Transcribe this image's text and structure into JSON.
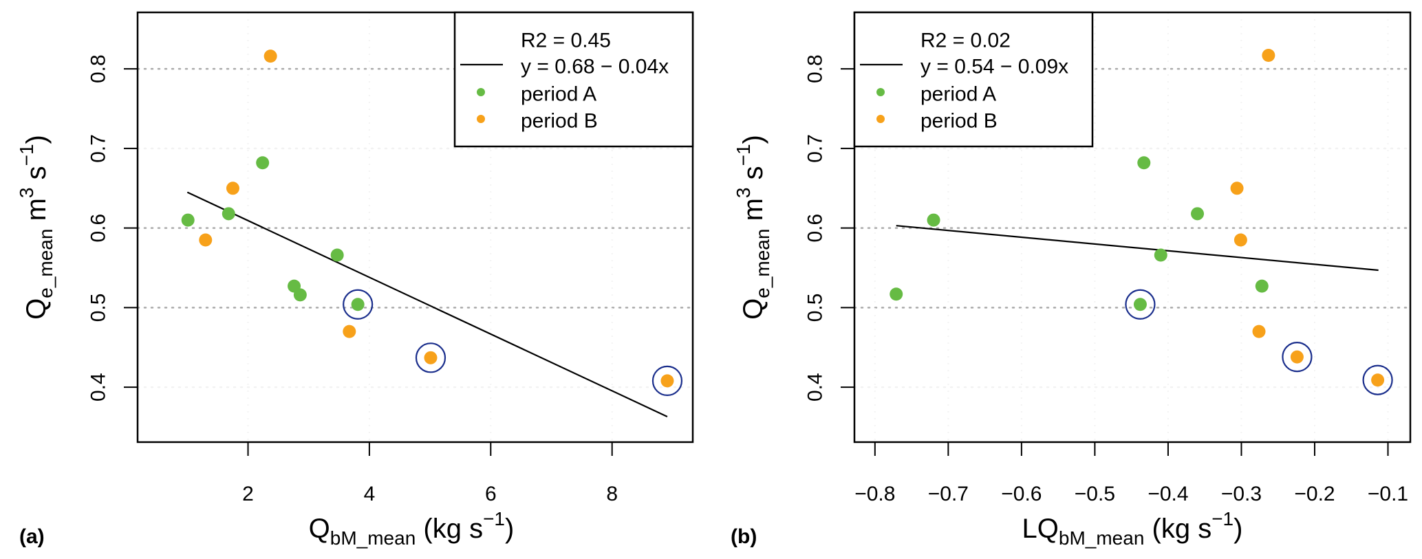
{
  "chart_data": [
    {
      "type": "scatter",
      "panel_label": "(a)",
      "xlabel": {
        "main": "Q",
        "sub": "bM_mean",
        "unit_open": " (kg s",
        "unit_sup": "−1",
        "unit_close": ")"
      },
      "ylabel": {
        "main": "Q",
        "sub": "e_mean",
        "unit_a": " m",
        "unit_a_sup": "3",
        "unit_b": " s",
        "unit_b_sup": "−1",
        "unit_close": ")",
        "unit_open": ""
      },
      "xlim": [
        0.18,
        9.33
      ],
      "ylim": [
        0.331,
        0.871
      ],
      "xticks": [
        2,
        4,
        6,
        8
      ],
      "xtick_labels": [
        "2",
        "4",
        "6",
        "8"
      ],
      "yticks": [
        0.4,
        0.5,
        0.6,
        0.7,
        0.8
      ],
      "ytick_labels": [
        "0.4",
        "0.5",
        "0.6",
        "0.7",
        "0.8"
      ],
      "grid": {
        "horizontal": [
          0.4,
          0.5,
          0.6,
          0.7,
          0.8
        ],
        "style": "dotted"
      },
      "legend": {
        "placement": "top-right",
        "entries": [
          {
            "label": "R2 =  0.45",
            "symbol": "none"
          },
          {
            "label": "y = 0.68 − 0.04x",
            "symbol": "line"
          },
          {
            "label": "period A",
            "symbol": "dot",
            "color": "#66bb44"
          },
          {
            "label": "period B",
            "symbol": "dot",
            "color": "#f7a11a"
          }
        ]
      },
      "regression": {
        "r2": 0.45,
        "intercept": 0.68,
        "slope": -0.04,
        "x_start": 1.0,
        "y_start": 0.645,
        "x_end": 8.91,
        "y_end": 0.363
      },
      "series": [
        {
          "name": "period A",
          "color": "#66bb44",
          "points": [
            {
              "x": 1.01,
              "y": 0.61,
              "circled": false
            },
            {
              "x": 1.68,
              "y": 0.618,
              "circled": false
            },
            {
              "x": 2.24,
              "y": 0.682,
              "circled": false
            },
            {
              "x": 2.76,
              "y": 0.527,
              "circled": false
            },
            {
              "x": 2.86,
              "y": 0.516,
              "circled": false
            },
            {
              "x": 3.47,
              "y": 0.566,
              "circled": false
            },
            {
              "x": 3.81,
              "y": 0.504,
              "circled": true
            }
          ]
        },
        {
          "name": "period B",
          "color": "#f7a11a",
          "points": [
            {
              "x": 1.3,
              "y": 0.585,
              "circled": false
            },
            {
              "x": 1.75,
              "y": 0.65,
              "circled": false
            },
            {
              "x": 2.37,
              "y": 0.816,
              "circled": false
            },
            {
              "x": 3.67,
              "y": 0.47,
              "circled": false
            },
            {
              "x": 5.01,
              "y": 0.437,
              "circled": true
            },
            {
              "x": 8.91,
              "y": 0.408,
              "circled": true
            }
          ]
        }
      ],
      "highlight_color": "#1a2e8c"
    },
    {
      "type": "scatter",
      "panel_label": "(b)",
      "xlabel": {
        "main": "LQ",
        "sub": "bM_mean",
        "unit_open": " (kg s",
        "unit_sup": "−1",
        "unit_close": ")"
      },
      "ylabel": {
        "main": "Q",
        "sub": "e_mean",
        "unit_a": " m",
        "unit_a_sup": "3",
        "unit_b": " s",
        "unit_b_sup": "−1",
        "unit_close": ")",
        "unit_open": ""
      },
      "xlim": [
        -0.828,
        -0.0695
      ],
      "ylim": [
        0.331,
        0.871
      ],
      "xticks": [
        -0.8,
        -0.7,
        -0.6,
        -0.5,
        -0.4,
        -0.3,
        -0.2,
        -0.1
      ],
      "xtick_labels": [
        "−0.8",
        "−0.7",
        "−0.6",
        "−0.5",
        "−0.4",
        "−0.3",
        "−0.2",
        "−0.1"
      ],
      "yticks": [
        0.4,
        0.5,
        0.6,
        0.7,
        0.8
      ],
      "ytick_labels": [
        "0.4",
        "0.5",
        "0.6",
        "0.7",
        "0.8"
      ],
      "grid": {
        "horizontal": [
          0.4,
          0.5,
          0.6,
          0.7,
          0.8
        ],
        "style": "dotted"
      },
      "legend": {
        "placement": "top-left",
        "entries": [
          {
            "label": "R2 =  0.02",
            "symbol": "none"
          },
          {
            "label": "y = 0.54 − 0.09x",
            "symbol": "line"
          },
          {
            "label": "period A",
            "symbol": "dot",
            "color": "#66bb44"
          },
          {
            "label": "period B",
            "symbol": "dot",
            "color": "#f7a11a"
          }
        ]
      },
      "regression": {
        "r2": 0.02,
        "intercept": 0.54,
        "slope": -0.09,
        "x_start": -0.771,
        "y_start": 0.603,
        "x_end": -0.113,
        "y_end": 0.547
      },
      "series": [
        {
          "name": "period A",
          "color": "#66bb44",
          "points": [
            {
              "x": -0.771,
              "y": 0.517,
              "circled": false
            },
            {
              "x": -0.72,
              "y": 0.61,
              "circled": false
            },
            {
              "x": -0.433,
              "y": 0.682,
              "circled": false
            },
            {
              "x": -0.41,
              "y": 0.566,
              "circled": false
            },
            {
              "x": -0.36,
              "y": 0.618,
              "circled": false
            },
            {
              "x": -0.272,
              "y": 0.527,
              "circled": false
            },
            {
              "x": -0.438,
              "y": 0.504,
              "circled": true
            }
          ]
        },
        {
          "name": "period B",
          "color": "#f7a11a",
          "points": [
            {
              "x": -0.306,
              "y": 0.65,
              "circled": false
            },
            {
              "x": -0.301,
              "y": 0.585,
              "circled": false
            },
            {
              "x": -0.263,
              "y": 0.817,
              "circled": false
            },
            {
              "x": -0.276,
              "y": 0.47,
              "circled": false
            },
            {
              "x": -0.224,
              "y": 0.438,
              "circled": true
            },
            {
              "x": -0.114,
              "y": 0.409,
              "circled": true
            }
          ]
        }
      ],
      "highlight_color": "#1a2e8c"
    }
  ]
}
